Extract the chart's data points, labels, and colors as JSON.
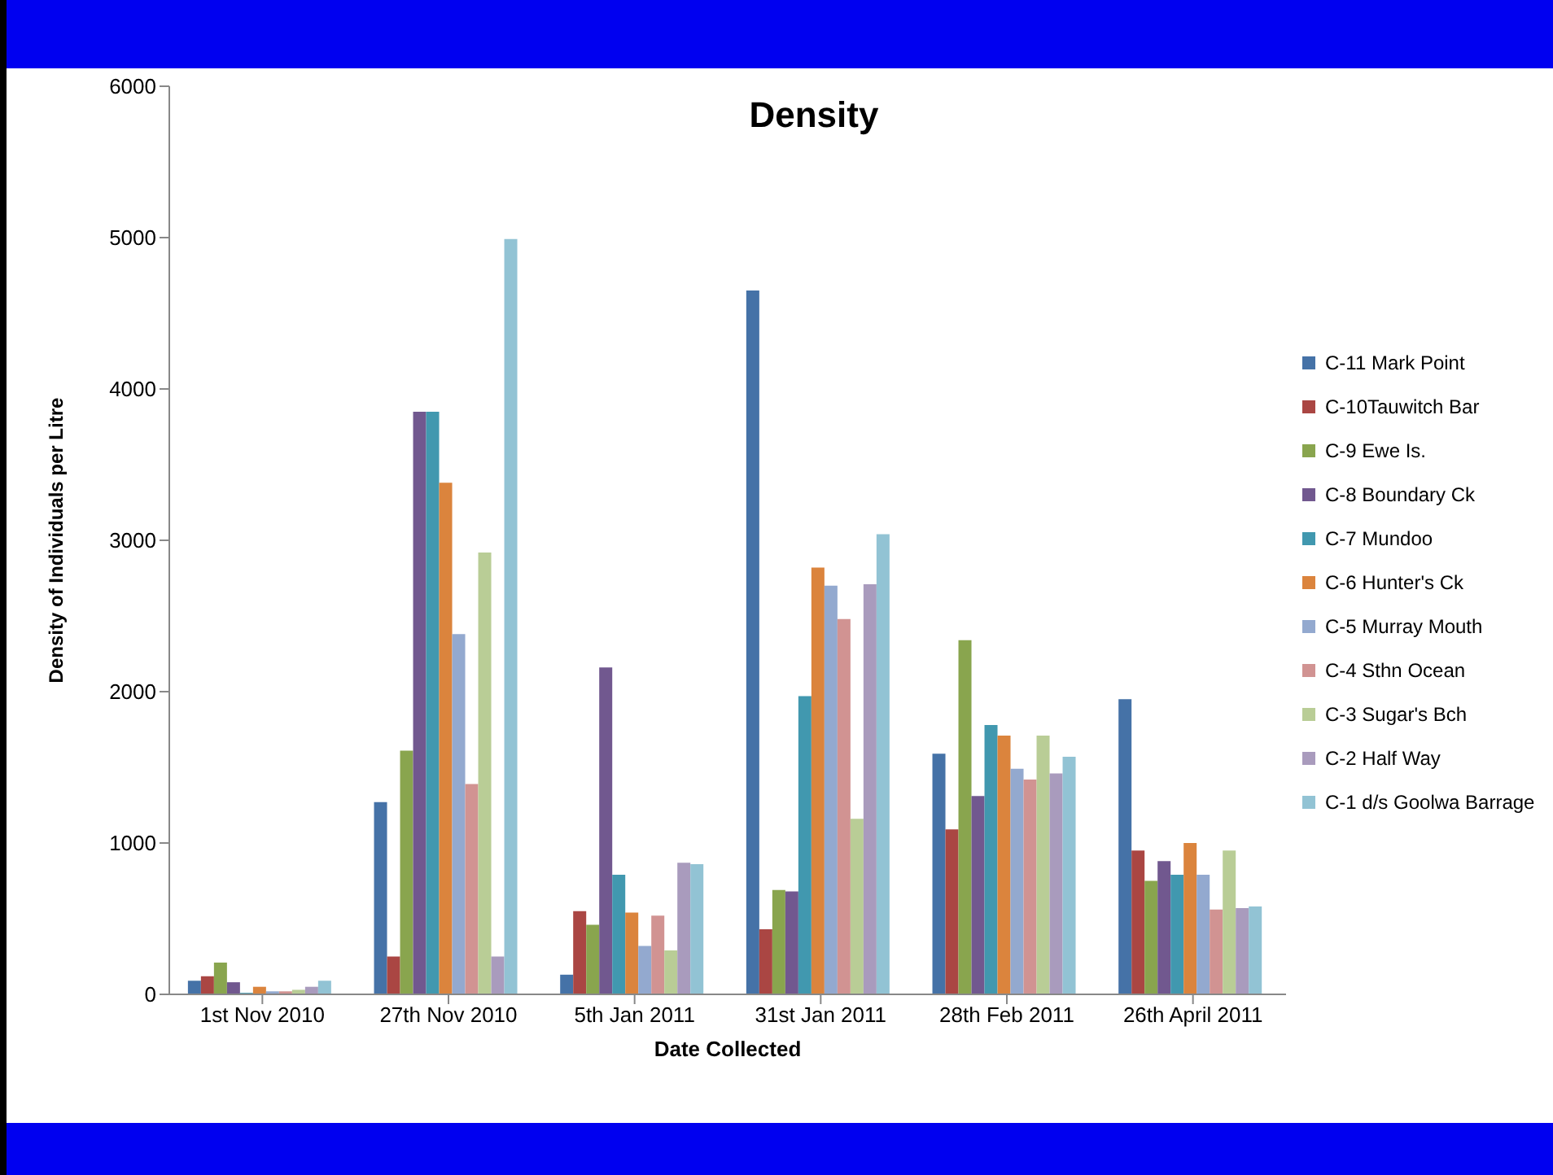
{
  "chart_data": {
    "type": "bar",
    "title": "Density",
    "xlabel": "Date Collected",
    "ylabel": "Density of Individuals per Litre",
    "categories": [
      "1st Nov 2010",
      "27th Nov 2010",
      "5th Jan 2011",
      "31st Jan 2011",
      "28th Feb 2011",
      "26th April 2011"
    ],
    "ylim": [
      0,
      6000
    ],
    "yticks": [
      0,
      1000,
      2000,
      3000,
      4000,
      5000,
      6000
    ],
    "grid": false,
    "legend": "right",
    "series": [
      {
        "name": "C-11 Mark Point",
        "color": "#4572a7",
        "values": [
          90,
          1270,
          130,
          4650,
          1590,
          1950
        ]
      },
      {
        "name": "C-10Tauwitch Bar",
        "color": "#aa4643",
        "values": [
          120,
          250,
          550,
          430,
          1090,
          950
        ]
      },
      {
        "name": "C-9 Ewe Is.",
        "color": "#89a54e",
        "values": [
          210,
          1610,
          460,
          690,
          2340,
          750
        ]
      },
      {
        "name": "C-8 Boundary Ck",
        "color": "#71588f",
        "values": [
          80,
          3850,
          2160,
          680,
          1310,
          880
        ]
      },
      {
        "name": "C-7 Mundoo",
        "color": "#4198af",
        "values": [
          10,
          3850,
          790,
          1970,
          1780,
          790
        ]
      },
      {
        "name": "C-6 Hunter's Ck",
        "color": "#db843d",
        "values": [
          50,
          3380,
          540,
          2820,
          1710,
          1000
        ]
      },
      {
        "name": "C-5 Murray Mouth",
        "color": "#93a9cf",
        "values": [
          20,
          2380,
          320,
          2700,
          1490,
          790
        ]
      },
      {
        "name": "C-4 Sthn Ocean",
        "color": "#d19392",
        "values": [
          20,
          1390,
          520,
          2480,
          1420,
          560
        ]
      },
      {
        "name": "C-3 Sugar's Bch",
        "color": "#b9cd96",
        "values": [
          30,
          2920,
          290,
          1160,
          1710,
          950
        ]
      },
      {
        "name": "C-2 Half Way",
        "color": "#a99bbd",
        "values": [
          50,
          250,
          870,
          2710,
          1460,
          570
        ]
      },
      {
        "name": "C-1 d/s Goolwa Barrage",
        "color": "#92c3d4",
        "values": [
          90,
          4990,
          860,
          3040,
          1570,
          580
        ]
      }
    ]
  }
}
